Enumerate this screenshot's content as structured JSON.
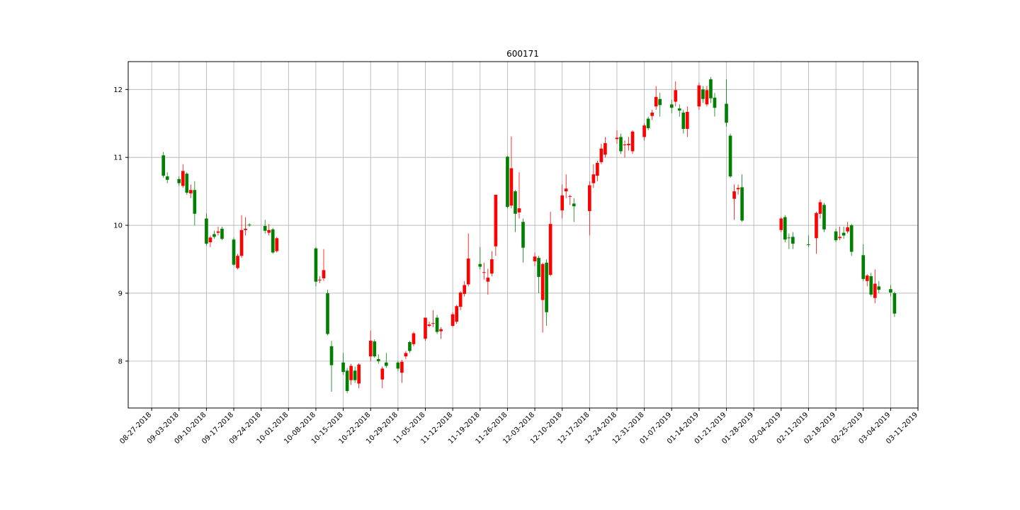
{
  "chart_data": {
    "type": "candlestick",
    "title": "600171",
    "x": [
      "2018-08-30",
      "2018-08-31",
      "2018-09-03",
      "2018-09-04",
      "2018-09-05",
      "2018-09-06",
      "2018-09-07",
      "2018-09-10",
      "2018-09-11",
      "2018-09-12",
      "2018-09-13",
      "2018-09-14",
      "2018-09-17",
      "2018-09-18",
      "2018-09-19",
      "2018-09-20",
      "2018-09-21",
      "2018-09-25",
      "2018-09-26",
      "2018-09-27",
      "2018-09-28",
      "2018-10-08",
      "2018-10-09",
      "2018-10-10",
      "2018-10-11",
      "2018-10-12",
      "2018-10-15",
      "2018-10-16",
      "2018-10-17",
      "2018-10-18",
      "2018-10-19",
      "2018-10-22",
      "2018-10-23",
      "2018-10-24",
      "2018-10-25",
      "2018-10-26",
      "2018-10-29",
      "2018-10-30",
      "2018-10-31",
      "2018-11-01",
      "2018-11-02",
      "2018-11-05",
      "2018-11-06",
      "2018-11-07",
      "2018-11-08",
      "2018-11-09",
      "2018-11-12",
      "2018-11-13",
      "2018-11-14",
      "2018-11-15",
      "2018-11-16",
      "2018-11-19",
      "2018-11-20",
      "2018-11-21",
      "2018-11-22",
      "2018-11-23",
      "2018-11-26",
      "2018-11-27",
      "2018-11-28",
      "2018-11-29",
      "2018-11-30",
      "2018-12-03",
      "2018-12-04",
      "2018-12-05",
      "2018-12-06",
      "2018-12-07",
      "2018-12-10",
      "2018-12-11",
      "2018-12-12",
      "2018-12-13",
      "2018-12-17",
      "2018-12-18",
      "2018-12-19",
      "2018-12-20",
      "2018-12-21",
      "2018-12-24",
      "2018-12-25",
      "2018-12-26",
      "2018-12-27",
      "2018-12-28",
      "2018-12-31",
      "2019-01-01",
      "2019-01-02",
      "2019-01-03",
      "2019-01-04",
      "2019-01-07",
      "2019-01-08",
      "2019-01-09",
      "2019-01-10",
      "2019-01-11",
      "2019-01-14",
      "2019-01-15",
      "2019-01-16",
      "2019-01-17",
      "2019-01-18",
      "2019-01-21",
      "2019-01-22",
      "2019-01-23",
      "2019-01-24",
      "2019-01-25",
      "2019-02-04",
      "2019-02-05",
      "2019-02-06",
      "2019-02-07",
      "2019-02-11",
      "2019-02-13",
      "2019-02-14",
      "2019-02-15",
      "2019-02-18",
      "2019-02-19",
      "2019-02-20",
      "2019-02-21",
      "2019-02-22",
      "2019-02-25",
      "2019-02-26",
      "2019-02-27",
      "2019-02-28",
      "2019-03-01",
      "2019-03-04",
      "2019-03-05"
    ],
    "open": [
      11.03,
      10.72,
      10.68,
      10.58,
      10.76,
      10.47,
      10.52,
      10.1,
      9.75,
      9.87,
      9.89,
      9.95,
      9.79,
      9.37,
      9.55,
      9.93,
      10.01,
      9.99,
      9.89,
      9.94,
      9.62,
      9.66,
      9.19,
      9.22,
      9.0,
      8.22,
      7.98,
      7.86,
      7.72,
      7.86,
      7.67,
      8.07,
      8.29,
      8.03,
      7.73,
      7.98,
      7.98,
      7.83,
      8.07,
      8.28,
      8.25,
      8.33,
      8.52,
      8.55,
      8.64,
      8.44,
      8.52,
      8.58,
      8.8,
      8.99,
      9.13,
      9.43,
      9.3,
      9.17,
      9.29,
      9.69,
      11.01,
      10.29,
      10.5,
      10.19,
      10.05,
      9.47,
      9.52,
      8.9,
      9.45,
      9.27,
      10.22,
      10.5,
      10.42,
      10.32,
      10.21,
      10.62,
      10.73,
      10.93,
      11.04,
      11.27,
      11.3,
      11.18,
      11.18,
      11.09,
      11.3,
      11.57,
      11.61,
      11.75,
      11.86,
      11.78,
      11.82,
      11.72,
      11.66,
      11.42,
      11.75,
      12.0,
      11.78,
      12.15,
      11.88,
      11.79,
      11.32,
      10.39,
      10.53,
      10.56,
      9.93,
      10.12,
      9.82,
      9.83,
      9.72,
      9.81,
      10.17,
      10.3,
      9.91,
      9.81,
      9.89,
      9.91,
      10.0,
      9.56,
      9.18,
      9.25,
      8.93,
      9.1,
      9.06,
      9.0
    ],
    "high": [
      11.08,
      10.78,
      10.72,
      10.9,
      10.78,
      10.6,
      10.65,
      10.18,
      9.85,
      9.92,
      9.98,
      9.98,
      9.82,
      9.58,
      10.15,
      10.12,
      10.03,
      10.08,
      10.02,
      9.96,
      9.83,
      9.68,
      9.25,
      9.65,
      9.05,
      8.3,
      8.12,
      7.9,
      7.96,
      7.92,
      7.97,
      8.45,
      8.32,
      8.1,
      7.92,
      8.12,
      8.0,
      8.02,
      8.15,
      8.3,
      8.43,
      8.64,
      8.58,
      8.75,
      8.68,
      8.5,
      8.72,
      8.83,
      9.03,
      9.18,
      9.88,
      9.68,
      9.45,
      9.36,
      9.62,
      10.45,
      11.02,
      11.31,
      10.52,
      10.78,
      10.1,
      9.6,
      9.55,
      9.45,
      9.5,
      10.2,
      10.6,
      10.75,
      10.45,
      10.4,
      10.65,
      10.9,
      10.95,
      11.2,
      11.3,
      11.4,
      11.35,
      11.25,
      11.3,
      11.4,
      11.5,
      11.6,
      11.7,
      12.05,
      11.95,
      11.85,
      12.12,
      11.78,
      11.7,
      11.75,
      12.1,
      12.05,
      12.05,
      12.18,
      11.95,
      12.15,
      11.35,
      10.6,
      10.6,
      10.75,
      10.12,
      10.15,
      9.88,
      9.9,
      9.85,
      10.2,
      10.38,
      10.33,
      9.95,
      9.98,
      9.98,
      10.05,
      10.02,
      9.72,
      9.28,
      9.3,
      9.35,
      9.18,
      9.12,
      9.02
    ],
    "low": [
      10.7,
      10.62,
      10.58,
      10.55,
      10.45,
      10.4,
      10.0,
      9.7,
      9.68,
      9.8,
      9.85,
      9.78,
      9.4,
      9.35,
      9.52,
      9.85,
      9.98,
      9.88,
      9.85,
      9.58,
      9.6,
      9.1,
      9.15,
      9.18,
      8.38,
      7.55,
      7.8,
      7.53,
      7.65,
      7.68,
      7.6,
      8.0,
      8.05,
      7.96,
      7.6,
      7.9,
      7.85,
      7.68,
      8.03,
      8.12,
      8.22,
      8.3,
      8.5,
      8.5,
      8.4,
      8.33,
      8.5,
      8.55,
      8.75,
      8.95,
      9.1,
      9.35,
      9.2,
      8.98,
      9.25,
      9.55,
      10.25,
      10.25,
      9.9,
      10.1,
      9.45,
      9.4,
      9.0,
      8.42,
      8.52,
      9.25,
      10.1,
      10.4,
      10.3,
      10.05,
      9.85,
      10.55,
      10.65,
      10.9,
      11.0,
      11.2,
      11.05,
      11.0,
      11.1,
      11.05,
      11.25,
      11.4,
      11.55,
      11.7,
      11.6,
      11.65,
      11.75,
      11.6,
      11.35,
      11.3,
      11.7,
      11.8,
      11.75,
      11.8,
      11.6,
      11.45,
      10.7,
      10.08,
      10.45,
      10.05,
      9.9,
      9.75,
      9.65,
      9.65,
      9.68,
      9.58,
      10.1,
      9.9,
      9.75,
      9.78,
      9.8,
      9.88,
      9.55,
      9.18,
      9.1,
      8.95,
      8.85,
      9.0,
      8.95,
      8.65
    ],
    "close": [
      10.73,
      10.67,
      10.62,
      10.8,
      10.48,
      10.52,
      10.17,
      9.73,
      9.82,
      9.83,
      9.91,
      9.8,
      9.42,
      9.55,
      9.93,
      9.95,
      10.0,
      9.92,
      9.93,
      9.6,
      9.81,
      9.17,
      9.2,
      9.34,
      8.4,
      7.94,
      7.84,
      7.56,
      7.93,
      7.72,
      7.95,
      8.3,
      8.07,
      8.0,
      7.89,
      7.93,
      7.89,
      7.99,
      8.12,
      8.15,
      8.41,
      8.64,
      8.54,
      8.56,
      8.43,
      8.47,
      8.69,
      8.81,
      9.01,
      9.12,
      9.51,
      9.39,
      9.31,
      9.23,
      9.5,
      10.45,
      10.27,
      10.84,
      10.17,
      10.25,
      9.67,
      9.54,
      9.24,
      9.43,
      8.72,
      10.02,
      10.44,
      10.54,
      10.43,
      10.28,
      10.59,
      10.75,
      10.92,
      11.13,
      11.21,
      11.29,
      11.09,
      11.19,
      11.2,
      11.38,
      11.47,
      11.43,
      11.66,
      11.89,
      11.77,
      11.73,
      11.99,
      11.69,
      11.42,
      11.67,
      12.06,
      11.86,
      11.99,
      11.87,
      11.73,
      11.51,
      10.72,
      10.5,
      10.55,
      10.07,
      10.1,
      9.79,
      9.81,
      9.73,
      9.71,
      10.18,
      10.34,
      9.94,
      9.78,
      9.83,
      9.85,
      9.97,
      9.61,
      9.21,
      9.26,
      8.98,
      9.14,
      9.05,
      9.01,
      8.7
    ],
    "up_color": "#ff0000",
    "down_color": "#008000",
    "xlim": [
      "2018-08-21",
      "2019-03-11"
    ],
    "xticks": [
      {
        "value": "2018-08-27",
        "label": "08-27-2018"
      },
      {
        "value": "2018-09-03",
        "label": "09-03-2018"
      },
      {
        "value": "2018-09-10",
        "label": "09-10-2018"
      },
      {
        "value": "2018-09-17",
        "label": "09-17-2018"
      },
      {
        "value": "2018-09-24",
        "label": "09-24-2018"
      },
      {
        "value": "2018-10-01",
        "label": "10-01-2018"
      },
      {
        "value": "2018-10-08",
        "label": "10-08-2018"
      },
      {
        "value": "2018-10-15",
        "label": "10-15-2018"
      },
      {
        "value": "2018-10-22",
        "label": "10-22-2018"
      },
      {
        "value": "2018-10-29",
        "label": "10-29-2018"
      },
      {
        "value": "2018-11-05",
        "label": "11-05-2018"
      },
      {
        "value": "2018-11-12",
        "label": "11-12-2018"
      },
      {
        "value": "2018-11-19",
        "label": "11-19-2018"
      },
      {
        "value": "2018-11-26",
        "label": "11-26-2018"
      },
      {
        "value": "2018-12-03",
        "label": "12-03-2018"
      },
      {
        "value": "2018-12-10",
        "label": "12-10-2018"
      },
      {
        "value": "2018-12-17",
        "label": "12-17-2018"
      },
      {
        "value": "2018-12-24",
        "label": "12-24-2018"
      },
      {
        "value": "2018-12-31",
        "label": "12-31-2018"
      },
      {
        "value": "2019-01-07",
        "label": "01-07-2019"
      },
      {
        "value": "2019-01-14",
        "label": "01-14-2019"
      },
      {
        "value": "2019-01-21",
        "label": "01-21-2019"
      },
      {
        "value": "2019-01-28",
        "label": "01-28-2019"
      },
      {
        "value": "2019-02-04",
        "label": "02-04-2019"
      },
      {
        "value": "2019-02-11",
        "label": "02-11-2019"
      },
      {
        "value": "2019-02-18",
        "label": "02-18-2019"
      },
      {
        "value": "2019-02-25",
        "label": "02-25-2019"
      },
      {
        "value": "2019-03-04",
        "label": "03-04-2019"
      },
      {
        "value": "2019-03-11",
        "label": "03-11-2019"
      }
    ],
    "ylim": [
      7.31,
      12.41
    ],
    "yticks": [
      8,
      9,
      10,
      11,
      12
    ],
    "grid": true
  }
}
